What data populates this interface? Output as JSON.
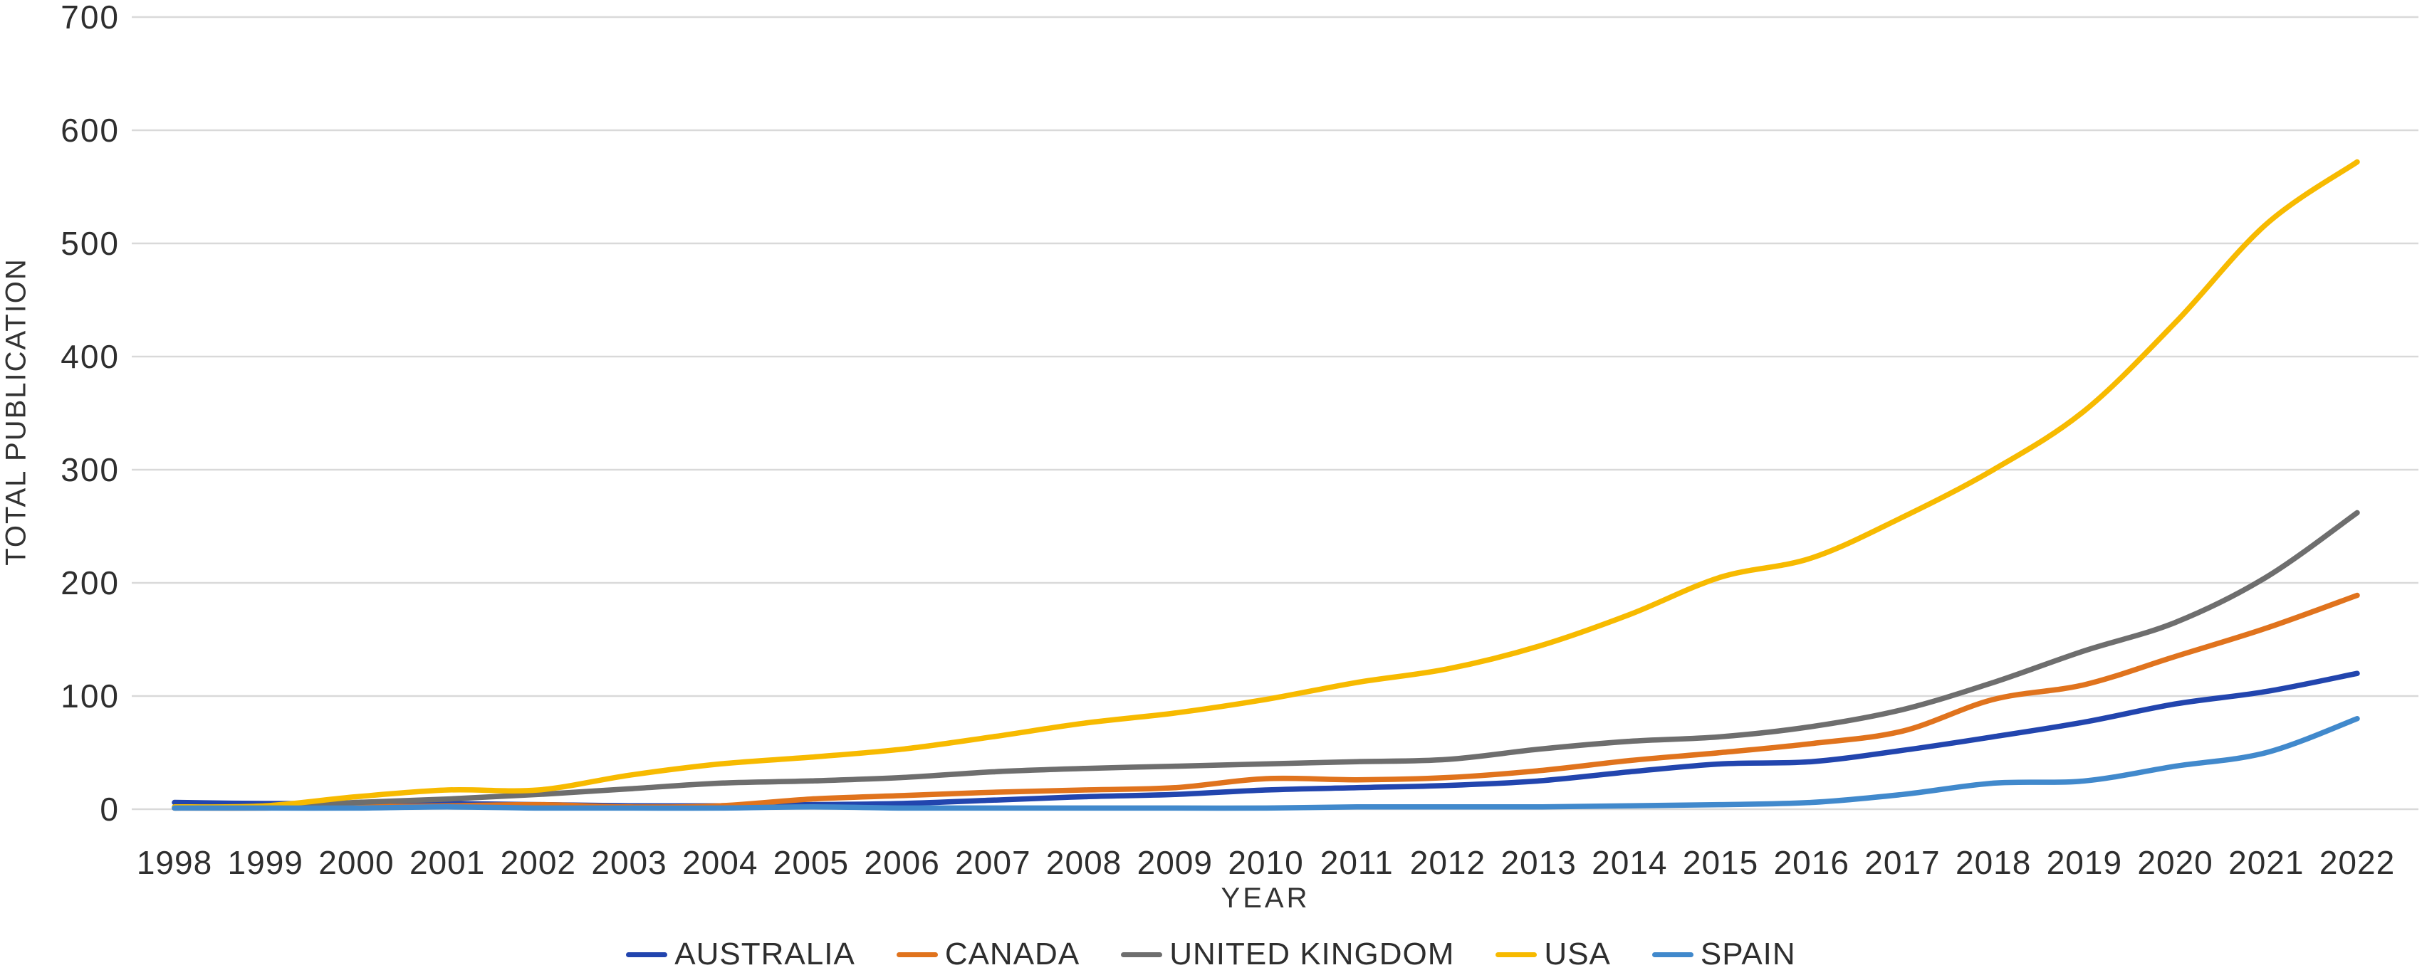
{
  "chart_data": {
    "type": "line",
    "title": "",
    "xlabel": "YEAR",
    "ylabel": "TOTAL PUBLICATION",
    "x": [
      1998,
      1999,
      2000,
      2001,
      2002,
      2003,
      2004,
      2005,
      2006,
      2007,
      2008,
      2009,
      2010,
      2011,
      2012,
      2013,
      2014,
      2015,
      2016,
      2017,
      2018,
      2019,
      2020,
      2021,
      2022
    ],
    "ylim": [
      0,
      700
    ],
    "ytick_step": 100,
    "grid": true,
    "line_style": "smooth",
    "legend_position": "bottom",
    "series": [
      {
        "name": "AUSTRALIA",
        "color": "#2245ae",
        "values": [
          6,
          5,
          5,
          5,
          4,
          3,
          3,
          4,
          5,
          8,
          11,
          13,
          17,
          19,
          21,
          25,
          33,
          40,
          42,
          52,
          64,
          77,
          93,
          104,
          120
        ]
      },
      {
        "name": "CANADA",
        "color": "#e0731d",
        "values": [
          1,
          1,
          2,
          3,
          4,
          2,
          3,
          9,
          12,
          15,
          17,
          19,
          27,
          26,
          28,
          34,
          43,
          50,
          58,
          69,
          97,
          110,
          135,
          160,
          189
        ]
      },
      {
        "name": "UNITED KINGDOM",
        "color": "#6e6e6e",
        "values": [
          1,
          2,
          6,
          9,
          13,
          18,
          23,
          25,
          28,
          33,
          36,
          38,
          40,
          42,
          44,
          53,
          60,
          64,
          73,
          88,
          112,
          140,
          165,
          205,
          262
        ]
      },
      {
        "name": "USA",
        "color": "#f7ba00",
        "values": [
          2,
          3,
          11,
          17,
          17,
          30,
          40,
          46,
          53,
          64,
          76,
          85,
          97,
          112,
          124,
          144,
          172,
          205,
          222,
          258,
          300,
          352,
          430,
          517,
          572
        ]
      },
      {
        "name": "SPAIN",
        "color": "#4189cc",
        "values": [
          1,
          1,
          1,
          2,
          1,
          1,
          1,
          2,
          1,
          1,
          1,
          1,
          1,
          2,
          2,
          2,
          3,
          4,
          6,
          13,
          23,
          25,
          38,
          50,
          80
        ]
      }
    ]
  },
  "styles": {
    "grid_color": "#d9d9d9",
    "tick_color": "#2e2e2e",
    "title_color": "#333333",
    "background": "#ffffff"
  }
}
